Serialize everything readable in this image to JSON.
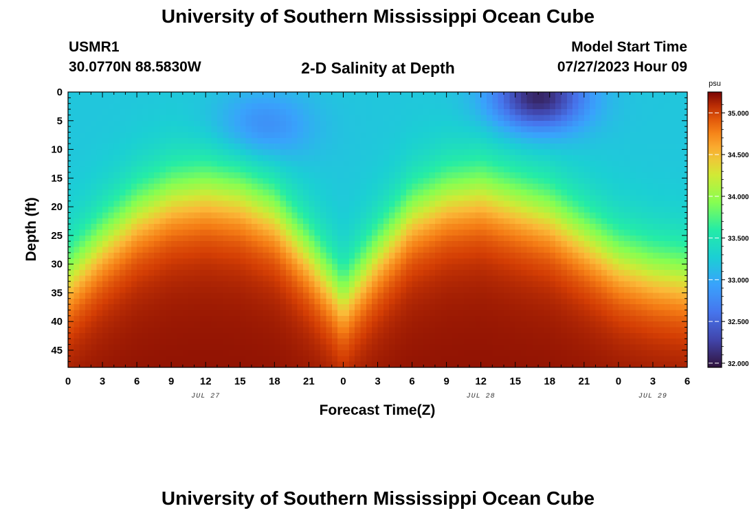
{
  "page": {
    "title": "University of Southern Mississippi Ocean Cube",
    "footer_title": "University of Southern Mississippi Ocean Cube",
    "station_id": "USMR1",
    "coordinates": "30.0770N  88.5830W",
    "subtitle": "2-D Salinity at Depth",
    "model_start_label": "Model Start Time",
    "model_start_value": "07/27/2023 Hour 09"
  },
  "chart_data": {
    "type": "heatmap",
    "title": "2-D Salinity at Depth",
    "xlabel": "Forecast Time(Z)",
    "ylabel": "Depth (ft)",
    "x_range_hours": [
      0,
      54
    ],
    "y_range_ft": [
      0,
      48
    ],
    "x_tick_labels": [
      "0",
      "3",
      "6",
      "9",
      "12",
      "15",
      "18",
      "21",
      "0",
      "3",
      "6",
      "9",
      "12",
      "15",
      "18",
      "21",
      "0",
      "3",
      "6"
    ],
    "y_tick_labels": [
      "0",
      "5",
      "10",
      "15",
      "20",
      "25",
      "30",
      "35",
      "40",
      "45"
    ],
    "date_labels": [
      {
        "text": "JUL 27",
        "hour": 12
      },
      {
        "text": "JUL 28",
        "hour": 36
      },
      {
        "text": "JUL 29",
        "hour": 51
      }
    ],
    "colorbar": {
      "unit": "psu",
      "min": 31.95,
      "max": 35.25,
      "tick_labels": [
        "35.000",
        "34.500",
        "34.000",
        "33.500",
        "33.000",
        "32.500",
        "32.000"
      ]
    },
    "value_model": {
      "surface_psu": 33.2,
      "surface_minima": [
        {
          "hour": 17,
          "depth_ft": 6,
          "psu": 32.75
        },
        {
          "hour": 41,
          "depth_ft": 1,
          "psu": 32.05
        }
      ],
      "halocline_depth_ft": [
        [
          0,
          31
        ],
        [
          3,
          25
        ],
        [
          6,
          20
        ],
        [
          9,
          17
        ],
        [
          12,
          16
        ],
        [
          15,
          17
        ],
        [
          18,
          20
        ],
        [
          21,
          27
        ],
        [
          24,
          35
        ],
        [
          27,
          27
        ],
        [
          30,
          20
        ],
        [
          33,
          17
        ],
        [
          36,
          16
        ],
        [
          39,
          18
        ],
        [
          42,
          20
        ],
        [
          45,
          24
        ],
        [
          48,
          28
        ],
        [
          51,
          30
        ],
        [
          54,
          31
        ]
      ],
      "bottom_psu_max": 35.2
    }
  }
}
